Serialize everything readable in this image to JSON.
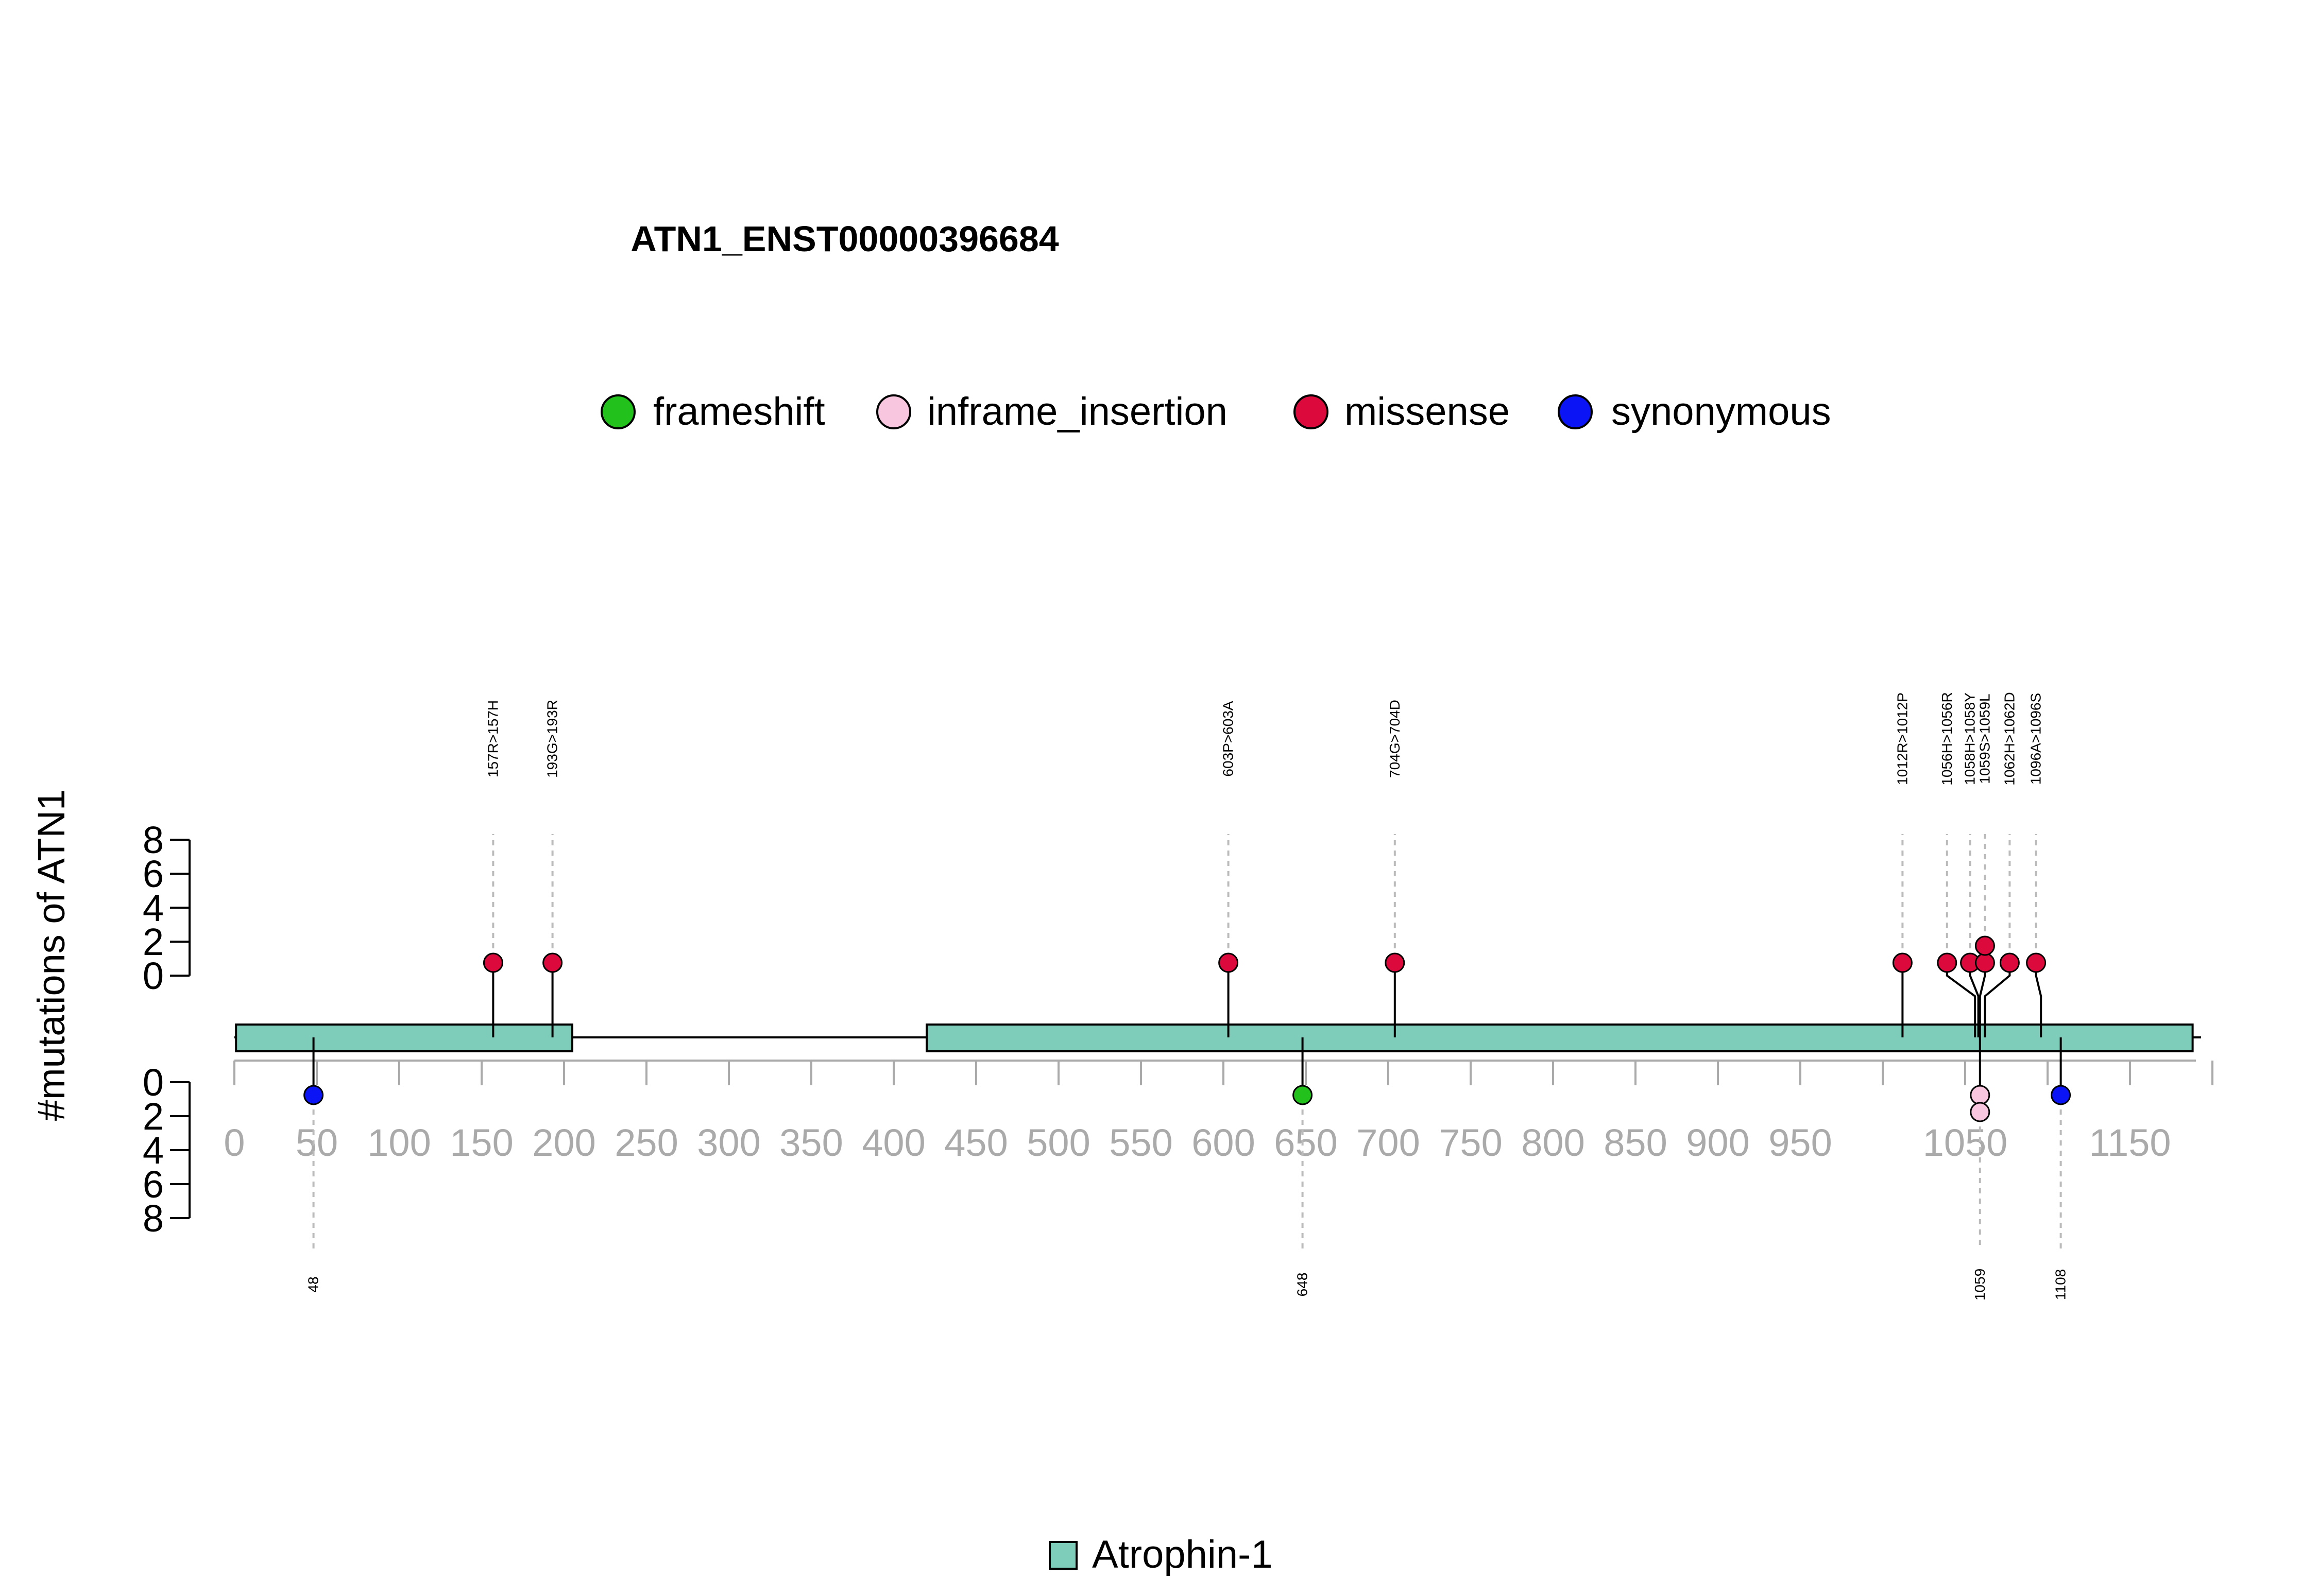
{
  "chart_data": {
    "type": "lollipop",
    "title": "ATN1_ENST00000396684",
    "ylabel": "#mutations of ATN1",
    "protein_length": 1190,
    "x_ticks": [
      0,
      50,
      100,
      150,
      200,
      250,
      300,
      350,
      400,
      450,
      500,
      550,
      600,
      650,
      700,
      750,
      800,
      850,
      900,
      950,
      1050,
      1150
    ],
    "y_ticks_upper": [
      0,
      2,
      4,
      6,
      8
    ],
    "y_ticks_lower": [
      0,
      2,
      4,
      6,
      8
    ],
    "ylim": [
      0,
      8
    ],
    "legend_top": [
      {
        "label": "frameshift",
        "color": "#22C11C"
      },
      {
        "label": "inframe_insertion",
        "color": "#F9C6DF"
      },
      {
        "label": "missense",
        "color": "#DC0A3C"
      },
      {
        "label": "synonymous",
        "color": "#0A14F5"
      }
    ],
    "domains": [
      {
        "name": "Atrophin-1",
        "start": 1,
        "end": 205,
        "color": "#7ECCBA"
      },
      {
        "name": "Atrophin-1",
        "start": 420,
        "end": 1188,
        "color": "#7ECCBA"
      }
    ],
    "domain_legend": {
      "label": "Atrophin-1",
      "color": "#7ECCBA"
    },
    "mutations_upper": [
      {
        "label": "157R>157H",
        "position": 157,
        "label_position": 157,
        "count": 1,
        "type": "missense"
      },
      {
        "label": "193G>193R",
        "position": 193,
        "label_position": 193,
        "count": 1,
        "type": "missense"
      },
      {
        "label": "603P>603A",
        "position": 603,
        "label_position": 603,
        "count": 1,
        "type": "missense"
      },
      {
        "label": "704G>704D",
        "position": 704,
        "label_position": 704,
        "count": 1,
        "type": "missense"
      },
      {
        "label": "1012R>1012P",
        "position": 1012,
        "label_position": 1012,
        "count": 1,
        "type": "missense"
      },
      {
        "label": "1056H>1056R",
        "position": 1056,
        "label_position": 1039,
        "count": 1,
        "type": "missense"
      },
      {
        "label": "1058H>1058Y",
        "position": 1058,
        "label_position": 1053,
        "count": 1,
        "type": "missense"
      },
      {
        "label": "1059S>1059L",
        "position": 1059,
        "label_position": 1062,
        "count": 2,
        "type": "missense"
      },
      {
        "label": "1062H>1062D",
        "position": 1062,
        "label_position": 1077,
        "count": 1,
        "type": "missense"
      },
      {
        "label": "1096A>1096S",
        "position": 1096,
        "label_position": 1093,
        "count": 1,
        "type": "missense"
      }
    ],
    "mutations_lower": [
      {
        "label": "48",
        "position": 48,
        "count": 1,
        "type": "synonymous"
      },
      {
        "label": "648",
        "position": 648,
        "count": 1,
        "type": "frameshift"
      },
      {
        "label": "1059",
        "position": 1059,
        "count": 2,
        "type": "inframe_insertion"
      },
      {
        "label": "1108",
        "position": 1108,
        "count": 1,
        "type": "synonymous"
      }
    ]
  }
}
